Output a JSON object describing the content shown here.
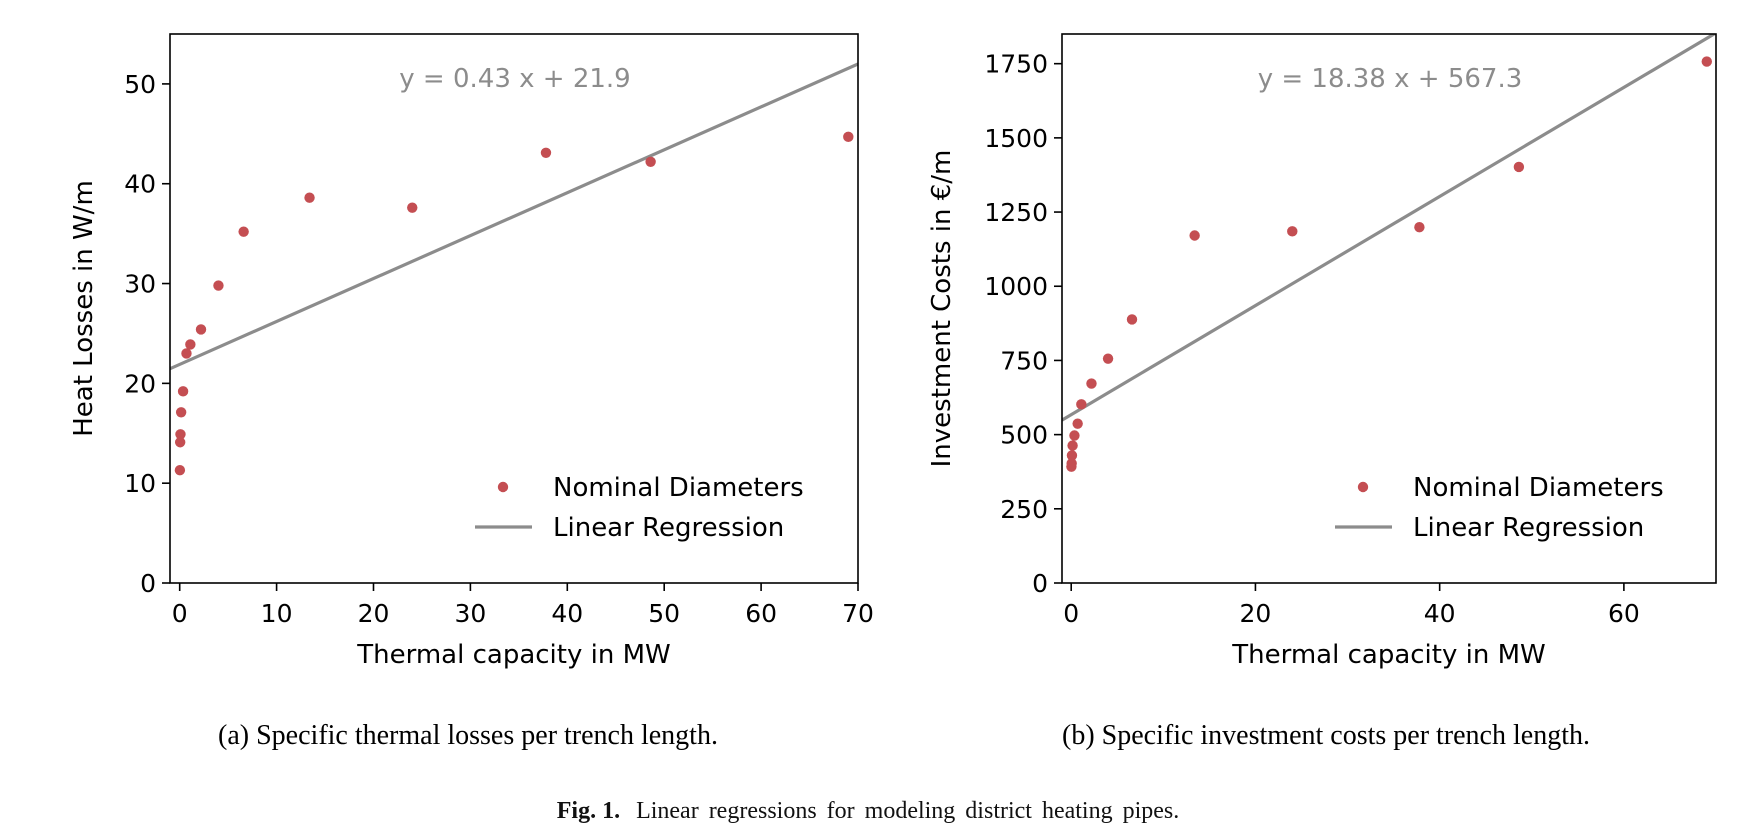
{
  "chart_data": [
    {
      "type": "scatter",
      "panel": "a",
      "caption": "(a) Specific thermal losses per trench length.",
      "xlabel": "Thermal capacity in MW",
      "ylabel": "Heat Losses in W/m",
      "xlim": [
        -1,
        70
      ],
      "ylim": [
        0,
        55
      ],
      "xticks": [
        0,
        10,
        20,
        30,
        40,
        50,
        60,
        70
      ],
      "yticks": [
        0,
        10,
        20,
        30,
        40,
        50
      ],
      "equation": "y = 0.43 x + 21.9",
      "regression": {
        "slope": 0.43,
        "intercept": 21.9
      },
      "legend_position": "lower-right",
      "series": [
        {
          "name": "Nominal Diameters",
          "kind": "scatter",
          "color": "#c44e52",
          "points": [
            [
              0.02,
              11.3
            ],
            [
              0.05,
              14.1
            ],
            [
              0.08,
              14.9
            ],
            [
              0.15,
              17.1
            ],
            [
              0.35,
              19.2
            ],
            [
              0.7,
              23.0
            ],
            [
              1.1,
              23.9
            ],
            [
              2.2,
              25.4
            ],
            [
              4.0,
              29.8
            ],
            [
              6.6,
              35.2
            ],
            [
              13.4,
              38.6
            ],
            [
              24.0,
              37.6
            ],
            [
              37.8,
              43.1
            ],
            [
              48.6,
              42.2
            ],
            [
              69.0,
              44.7
            ]
          ]
        },
        {
          "name": "Linear Regression",
          "kind": "line",
          "color": "#8c8c8c"
        }
      ]
    },
    {
      "type": "scatter",
      "panel": "b",
      "caption": "(b) Specific investment costs per trench length.",
      "xlabel": "Thermal capacity in MW",
      "ylabel": "Investment Costs in €/m",
      "xlim": [
        -1,
        70
      ],
      "ylim": [
        0,
        1850
      ],
      "xticks": [
        0,
        20,
        40,
        60
      ],
      "yticks": [
        0,
        250,
        500,
        750,
        1000,
        1250,
        1500,
        1750
      ],
      "equation": "y = 18.38 x + 567.3",
      "regression": {
        "slope": 18.38,
        "intercept": 567.3
      },
      "legend_position": "lower-right",
      "series": [
        {
          "name": "Nominal Diameters",
          "kind": "scatter",
          "color": "#c44e52",
          "points": [
            [
              0.02,
              392
            ],
            [
              0.05,
              403
            ],
            [
              0.08,
              430
            ],
            [
              0.15,
              463
            ],
            [
              0.35,
              497
            ],
            [
              0.7,
              537
            ],
            [
              1.1,
              602
            ],
            [
              2.2,
              672
            ],
            [
              4.0,
              756
            ],
            [
              6.6,
              888
            ],
            [
              13.4,
              1171
            ],
            [
              24.0,
              1185
            ],
            [
              37.8,
              1199
            ],
            [
              48.6,
              1402
            ],
            [
              69.0,
              1757
            ]
          ]
        },
        {
          "name": "Linear Regression",
          "kind": "line",
          "color": "#8c8c8c"
        }
      ]
    }
  ],
  "figure_caption": {
    "label": "Fig. 1.",
    "text": "Linear regressions for modeling district heating pipes."
  }
}
